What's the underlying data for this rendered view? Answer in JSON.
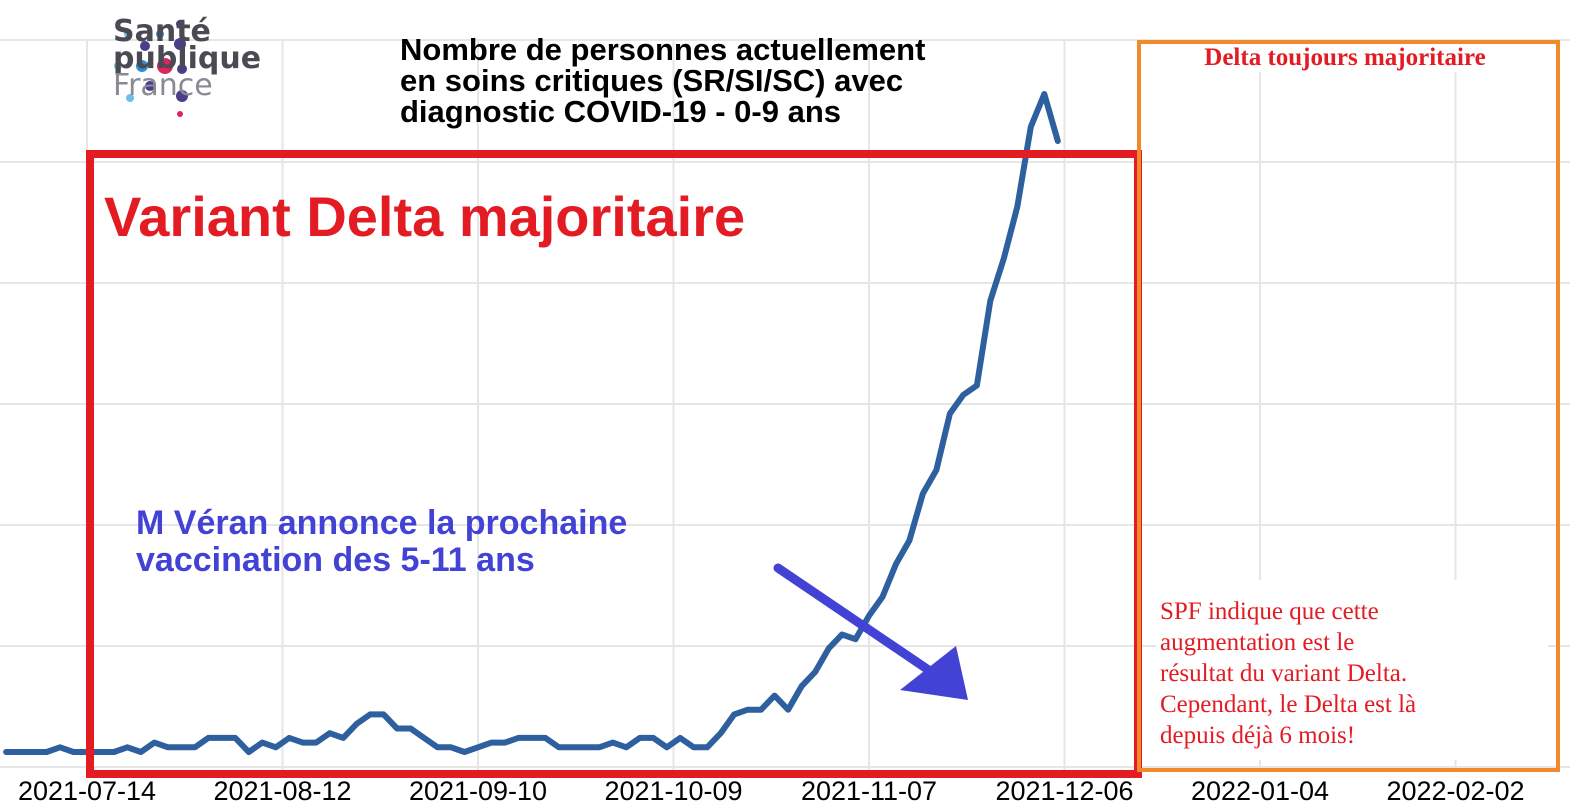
{
  "title_lines": [
    "Nombre de personnes actuellement",
    "en soins critiques (SR/SI/SC) avec",
    "diagnostic COVID-19 - 0-9 ans"
  ],
  "logo": {
    "line1": "Santé",
    "line2": "publique",
    "line3": "France"
  },
  "annotations": {
    "delta_main": "Variant Delta majoritaire",
    "veran_lines": [
      "M Véran annonce la prochaine",
      "vaccination des 5-11 ans"
    ],
    "delta_top": "Delta toujours majoritaire",
    "spf_lines": [
      "SPF indique que cette",
      "augmentation est le",
      "résultat du variant Delta.",
      "Cependant, le Delta est là",
      "depuis déjà 6 mois!"
    ]
  },
  "colors": {
    "line": "#2e5f9e",
    "red": "#e31b23",
    "orange": "#f08a2c",
    "annotation_blue": "#4242d4",
    "grid": "#e6e6e6"
  },
  "chart_data": {
    "type": "line",
    "title": "Nombre de personnes actuellement en soins critiques (SR/SI/SC) avec diagnostic COVID-19 - 0-9 ans",
    "x_tick_labels": [
      "2021-07-14",
      "2021-08-12",
      "2021-09-10",
      "2021-10-09",
      "2021-11-07",
      "2021-12-06",
      "2022-01-04",
      "2022-02-02"
    ],
    "x_range_days": [
      -12,
      145
    ],
    "y_axis_labels": "not visible",
    "grid": true,
    "series": [
      {
        "x": [
          -12,
          -10,
          -8,
          -6,
          -4,
          -2,
          0,
          2,
          4,
          6,
          8,
          10,
          12,
          14,
          16,
          18,
          20,
          22,
          24,
          26,
          28,
          30,
          32,
          34,
          36,
          38,
          40,
          42,
          44,
          46,
          48,
          50,
          52,
          54,
          56,
          58,
          60,
          62,
          64,
          66,
          68,
          70,
          72,
          74,
          76,
          78,
          80,
          82,
          84,
          86,
          88,
          90,
          92,
          94,
          96,
          98,
          100,
          102,
          104,
          106,
          108,
          110,
          112,
          114,
          116,
          118,
          120,
          122,
          124,
          126,
          128,
          130,
          132,
          134,
          136,
          138,
          140,
          142,
          144
        ],
        "y": [
          0,
          0,
          0,
          0,
          1,
          0,
          0,
          0,
          0,
          1,
          0,
          2,
          1,
          1,
          1,
          3,
          3,
          3,
          0,
          2,
          1,
          3,
          2,
          2,
          4,
          3,
          6,
          8,
          8,
          5,
          5,
          3,
          1,
          1,
          0,
          1,
          2,
          2,
          3,
          3,
          3,
          1,
          1,
          1,
          1,
          2,
          1,
          3,
          3,
          1,
          3,
          1,
          1,
          4,
          8,
          9,
          9,
          12,
          9,
          14,
          17,
          22,
          25,
          24,
          29,
          33,
          40,
          45,
          55,
          60,
          72,
          76,
          78,
          96,
          105,
          116,
          133,
          140,
          130
        ],
        "note": "y values are relative levels; y-axis tick labels are not visible in the image"
      }
    ]
  }
}
